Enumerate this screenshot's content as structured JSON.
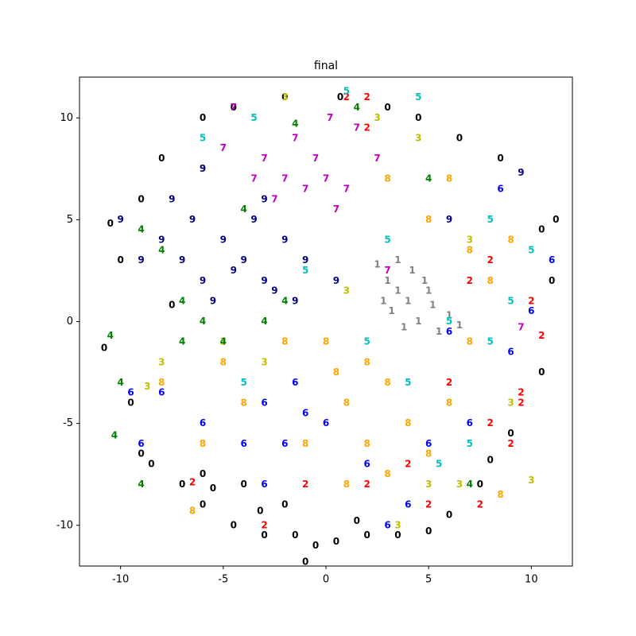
{
  "chart_data": {
    "type": "scatter",
    "title": "final",
    "xlim": [
      -12,
      12
    ],
    "ylim": [
      -12,
      12
    ],
    "xticks": [
      -10,
      -5,
      0,
      5,
      10
    ],
    "yticks": [
      -10,
      -5,
      0,
      5,
      10
    ],
    "series": [
      {
        "name": "0",
        "color": "#000000",
        "x": [
          -10.5,
          -10,
          -10.8,
          -9.5,
          -9,
          -8.5,
          -7,
          -6,
          -4.5,
          -3,
          -1.5,
          -0.5,
          0.5,
          2,
          3.5,
          5,
          6,
          7.5,
          9,
          10.5,
          11,
          11.2,
          10.5,
          8.5,
          6.5,
          4.5,
          3,
          0.7,
          -2,
          -4.5,
          -6,
          -8,
          -9,
          -1,
          -2,
          -4,
          -6,
          -5.5,
          -3.2,
          1.5,
          -7.5,
          8
        ],
        "values": [
          4.8,
          3,
          -1.3,
          -4,
          -6.5,
          -7,
          -8,
          -9,
          -10,
          -10.5,
          -10.5,
          -11,
          -10.8,
          -10.5,
          -10.5,
          -10.3,
          -9.5,
          -8,
          -5.5,
          -2.5,
          2,
          5,
          4.5,
          8,
          9,
          10,
          10.5,
          11,
          11,
          10.5,
          10,
          8,
          6,
          -11.8,
          -9,
          -8,
          -7.5,
          -8.2,
          -9.3,
          -9.8,
          0.8,
          -6.8
        ]
      },
      {
        "name": "1",
        "color": "#808080",
        "x": [
          3.5,
          4,
          3,
          4.5,
          5,
          3.2,
          5.5,
          4.2,
          2.8,
          6,
          3.8,
          4.8,
          2.5,
          5.2,
          6.5,
          3.5
        ],
        "values": [
          1.5,
          1,
          2,
          0,
          1.5,
          0.5,
          -0.5,
          2.5,
          1,
          0.3,
          -0.3,
          2,
          2.8,
          0.8,
          -0.2,
          3
        ]
      },
      {
        "name": "2",
        "color": "#ff0000",
        "x": [
          7,
          8,
          9.5,
          10.5,
          8,
          9,
          7.5,
          5,
          2,
          -1,
          -3,
          -6.5,
          1,
          2,
          2,
          9.5,
          6,
          4,
          10
        ],
        "values": [
          2,
          3,
          -4,
          -0.7,
          -5,
          -6,
          -9,
          -9,
          -8,
          -8,
          -10,
          -7.9,
          11,
          11,
          9.5,
          -3.5,
          -3,
          -7,
          1
        ]
      },
      {
        "name": "3",
        "color": "#bfbf00",
        "x": [
          2.5,
          4.5,
          -2,
          -6,
          -8,
          -8.7,
          10,
          9,
          5,
          6.5,
          3.5,
          7,
          -3,
          1,
          -5
        ],
        "values": [
          10,
          9,
          11,
          7.5,
          -2,
          -3.2,
          -7.8,
          -4,
          -8,
          -8,
          -10,
          4,
          -2,
          1.5,
          -1
        ]
      },
      {
        "name": "4",
        "color": "#008000",
        "x": [
          -10.5,
          -10,
          -9,
          -8,
          -7,
          -6,
          -5,
          -3,
          -2,
          -4,
          1.5,
          -1.5,
          5,
          -7,
          -9,
          -10.3,
          7
        ],
        "values": [
          -0.7,
          -3,
          4.5,
          3.5,
          1,
          0,
          -1,
          0,
          1,
          5.5,
          10.5,
          9.7,
          7,
          -1,
          -8,
          -5.6,
          -8
        ]
      },
      {
        "name": "5",
        "color": "#00bfbf",
        "x": [
          4.5,
          -3.5,
          -6,
          1,
          10,
          9,
          8,
          7,
          5.5,
          4,
          2,
          -1,
          3,
          8,
          6,
          -4
        ],
        "values": [
          11,
          10,
          9,
          11.3,
          3.5,
          1,
          -1,
          -6,
          -7,
          -3,
          -1,
          2.5,
          4,
          5,
          0,
          -3
        ]
      },
      {
        "name": "6",
        "color": "#0000ff",
        "x": [
          -1,
          -3,
          -2,
          -4,
          -6,
          -8,
          -9.5,
          0,
          -1.5,
          2,
          4,
          3,
          5,
          7,
          9,
          10,
          11,
          8.5,
          6,
          -3,
          -9
        ],
        "values": [
          -4.5,
          -4,
          -6,
          -6,
          -5,
          -3.5,
          -3.5,
          -5,
          -3,
          -7,
          -9,
          -10,
          -6,
          -5,
          -1.5,
          0.5,
          3,
          6.5,
          -0.5,
          -8,
          -6
        ]
      },
      {
        "name": "7",
        "color": "#bf00bf",
        "x": [
          -2,
          -1,
          0,
          -3,
          -0.5,
          1,
          -1.5,
          -4.5,
          0.5,
          2.5,
          -2.5,
          -3.5,
          3,
          9.5,
          -5,
          1.5,
          0.2
        ],
        "values": [
          7,
          6.5,
          7,
          8,
          8,
          6.5,
          9,
          10.5,
          5.5,
          8,
          6,
          7,
          2.5,
          -0.3,
          8.5,
          9.5,
          10
        ]
      },
      {
        "name": "8",
        "color": "#ffa500",
        "x": [
          0,
          2,
          3,
          -5,
          6,
          1,
          4,
          2,
          7,
          8,
          5,
          3,
          -2,
          -4,
          -6,
          -8,
          6,
          8.5,
          -6.5,
          9,
          1,
          3,
          5,
          7,
          0.5,
          -1
        ],
        "values": [
          -1,
          -2,
          -3,
          -2,
          -4,
          -4,
          -5,
          -6,
          -1,
          2,
          5,
          7,
          -1,
          -4,
          -6,
          -3,
          7,
          -8.5,
          -9.3,
          4,
          -8,
          -7.5,
          -6.5,
          3.5,
          -2.5,
          -6
        ]
      },
      {
        "name": "9",
        "color": "#000080",
        "x": [
          -4,
          -5,
          -3,
          -2,
          -6,
          -3.5,
          -1,
          -5.5,
          -7,
          -4.5,
          -2.5,
          -8,
          -6.5,
          -3,
          -1.5,
          0.5,
          -7.5,
          -9,
          -10,
          6,
          9.5,
          -6
        ],
        "values": [
          3,
          4,
          2,
          4,
          2,
          5,
          3,
          1,
          3,
          2.5,
          1.5,
          4,
          5,
          6,
          1,
          2,
          6,
          3,
          5,
          5,
          7.3,
          7.5
        ]
      }
    ]
  }
}
